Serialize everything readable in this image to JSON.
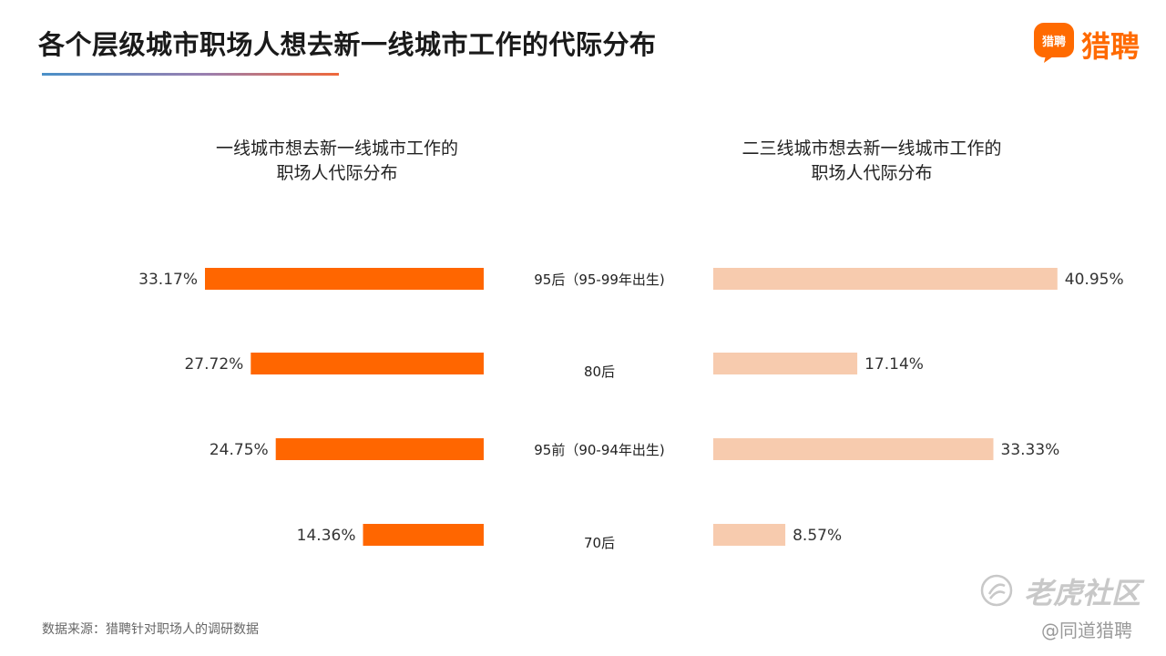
{
  "header": {
    "title": "各个层级城市职场人想去新一线城市工作的代际分布",
    "brand_name": "猎聘",
    "brand_logo_text": "猎聘",
    "accent_color": "#ff6a00"
  },
  "chart_data": {
    "type": "bar",
    "orientation": "horizontal-butterfly",
    "categories": [
      "95后（95-99年出生)",
      "80后",
      "95前（90-94年出生)",
      "70后"
    ],
    "series": [
      {
        "name": "一线城市想去新一线城市工作的职场人代际分布",
        "title_lines": [
          "一线城市想去新一线城市工作的",
          "职场人代际分布"
        ],
        "values": [
          33.17,
          27.72,
          24.75,
          14.36
        ],
        "labels": [
          "33.17%",
          "27.72%",
          "24.75%",
          "14.36%"
        ],
        "color": "#ff6600",
        "direction": "left"
      },
      {
        "name": "二三线城市想去新一线城市工作的职场人代际分布",
        "title_lines": [
          "二三线城市想去新一线城市工作的",
          "职场人代际分布"
        ],
        "values": [
          40.95,
          17.14,
          33.33,
          8.57
        ],
        "labels": [
          "40.95%",
          "17.14%",
          "33.33%",
          "8.57%"
        ],
        "color": "#f7cbae",
        "direction": "right"
      }
    ],
    "unit": "%",
    "grid": false,
    "axes_visible": false
  },
  "footer": {
    "source": "数据来源：猎聘针对职场人的调研数据"
  },
  "watermark": {
    "main": "老虎社区",
    "sub": "@同道猎聘"
  }
}
